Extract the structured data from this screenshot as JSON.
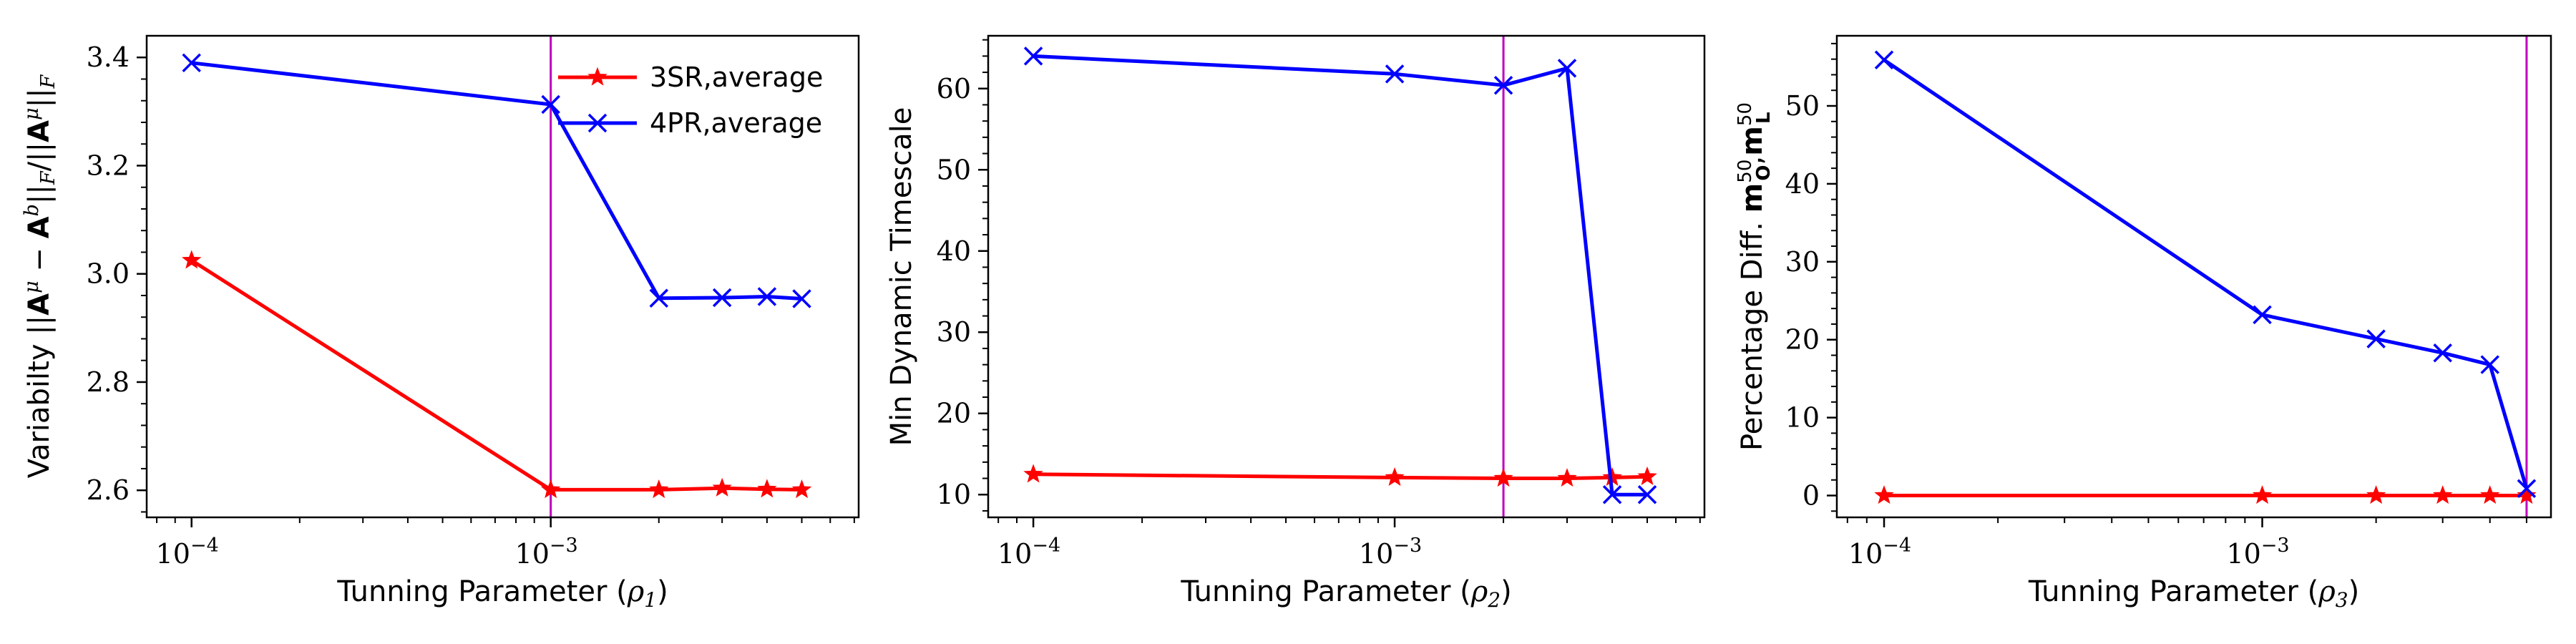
{
  "chart_data": [
    {
      "type": "line",
      "xscale": "log",
      "xlabel": "Tunning Parameter (ρ1)",
      "xlabel_parts": {
        "text": "Tunning Parameter (",
        "symbol": "ρ",
        "sub": "1",
        "close": ")"
      },
      "ylabel": "Variabilty ||Aμ − Ab||F/||Aμ||F",
      "ylim": [
        2.55,
        3.44
      ],
      "yticks": [
        2.6,
        2.8,
        3.0,
        3.2,
        3.4
      ],
      "ytick_labels": [
        "2.6",
        "2.8",
        "3.0",
        "3.2",
        "3.4"
      ],
      "xlim": [
        7.5e-05,
        0.0072
      ],
      "xtick_labels": [
        "10",
        "10"
      ],
      "xtick_exps": [
        "−4",
        "−3"
      ],
      "xticks": [
        0.0001,
        0.001
      ],
      "vline": 0.001,
      "legend_position": "top-right",
      "series": [
        {
          "name": "3SR,average",
          "color": "#ff0000",
          "marker": "star",
          "x": [
            0.0001,
            0.001,
            0.002,
            0.003,
            0.004,
            0.005
          ],
          "y": [
            3.025,
            2.601,
            2.601,
            2.604,
            2.602,
            2.601
          ]
        },
        {
          "name": "4PR,average",
          "color": "#0000ff",
          "marker": "x",
          "x": [
            0.0001,
            0.001,
            0.002,
            0.003,
            0.004,
            0.005
          ],
          "y": [
            3.39,
            3.313,
            2.955,
            2.956,
            2.958,
            2.954
          ]
        }
      ]
    },
    {
      "type": "line",
      "xscale": "log",
      "xlabel": "Tunning Parameter (ρ2)",
      "xlabel_parts": {
        "text": "Tunning Parameter (",
        "symbol": "ρ",
        "sub": "2",
        "close": ")"
      },
      "ylabel": "Min Dynamic Timescale",
      "ylim": [
        7.2,
        66.5
      ],
      "yticks": [
        10,
        20,
        30,
        40,
        50,
        60
      ],
      "ytick_labels": [
        "10",
        "20",
        "30",
        "40",
        "50",
        "60"
      ],
      "xlim": [
        7.5e-05,
        0.0072
      ],
      "xtick_labels": [
        "10",
        "10"
      ],
      "xtick_exps": [
        "−4",
        "−3"
      ],
      "xticks": [
        0.0001,
        0.001
      ],
      "vline": 0.002,
      "series": [
        {
          "name": "",
          "color": "#ff0000",
          "marker": "star",
          "x": [
            0.0001,
            0.001,
            0.002,
            0.003,
            0.004,
            0.005
          ],
          "y": [
            12.5,
            12.1,
            12.0,
            12.0,
            12.1,
            12.2
          ]
        },
        {
          "name": "",
          "color": "#0000ff",
          "marker": "x",
          "x": [
            0.0001,
            0.001,
            0.002,
            0.003,
            0.004,
            0.005
          ],
          "y": [
            64.0,
            61.8,
            60.4,
            62.5,
            10.0,
            10.0
          ]
        }
      ]
    },
    {
      "type": "line",
      "xscale": "log",
      "xlabel": "Tunning Parameter (ρ3)",
      "xlabel_parts": {
        "text": "Tunning Parameter (",
        "symbol": "ρ",
        "sub": "3",
        "close": ")"
      },
      "ylabel": "Percentage Diff. m50O,m50L",
      "ylim": [
        -2.8,
        59
      ],
      "yticks": [
        0,
        10,
        20,
        30,
        40,
        50
      ],
      "ytick_labels": [
        "0",
        "10",
        "20",
        "30",
        "40",
        "50"
      ],
      "xlim": [
        7.5e-05,
        0.0058
      ],
      "xtick_labels": [
        "10",
        "10"
      ],
      "xtick_exps": [
        "−4",
        "−3"
      ],
      "xticks": [
        0.0001,
        0.001
      ],
      "vline": 0.005,
      "series": [
        {
          "name": "",
          "color": "#ff0000",
          "marker": "star",
          "x": [
            0.0001,
            0.001,
            0.002,
            0.003,
            0.004,
            0.005
          ],
          "y": [
            0.0,
            0.0,
            0.0,
            0.0,
            0.0,
            0.0
          ]
        },
        {
          "name": "",
          "color": "#0000ff",
          "marker": "x",
          "x": [
            0.0001,
            0.001,
            0.002,
            0.003,
            0.004,
            0.005
          ],
          "y": [
            55.9,
            23.2,
            20.1,
            18.3,
            16.8,
            0.9
          ]
        }
      ]
    }
  ],
  "vline_color": "#bf00bf"
}
